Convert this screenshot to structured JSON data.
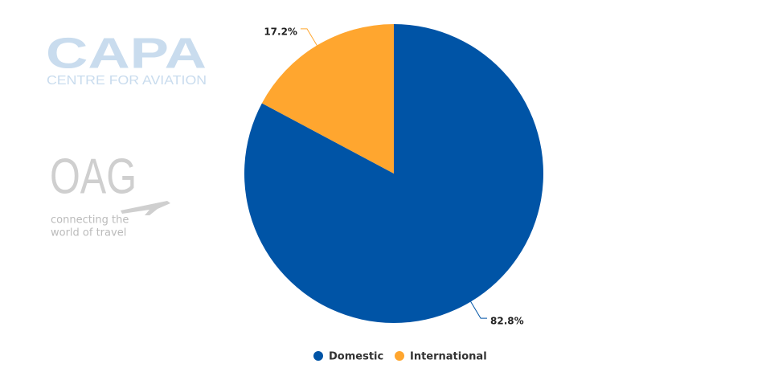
{
  "logos": {
    "capa": "CAPA",
    "capa_tagline": "CENTRE FOR AVIATION",
    "oag": "OAG",
    "oag_tagline": [
      "connecting the",
      "world of travel"
    ]
  },
  "chart_data": {
    "type": "pie",
    "categories": [
      "Domestic",
      "International"
    ],
    "values": [
      82.8,
      17.2
    ],
    "value_labels": [
      "82.8%",
      "17.2%"
    ],
    "colors": [
      "#0054a6",
      "#ffa62f"
    ],
    "legend": "bottom"
  }
}
